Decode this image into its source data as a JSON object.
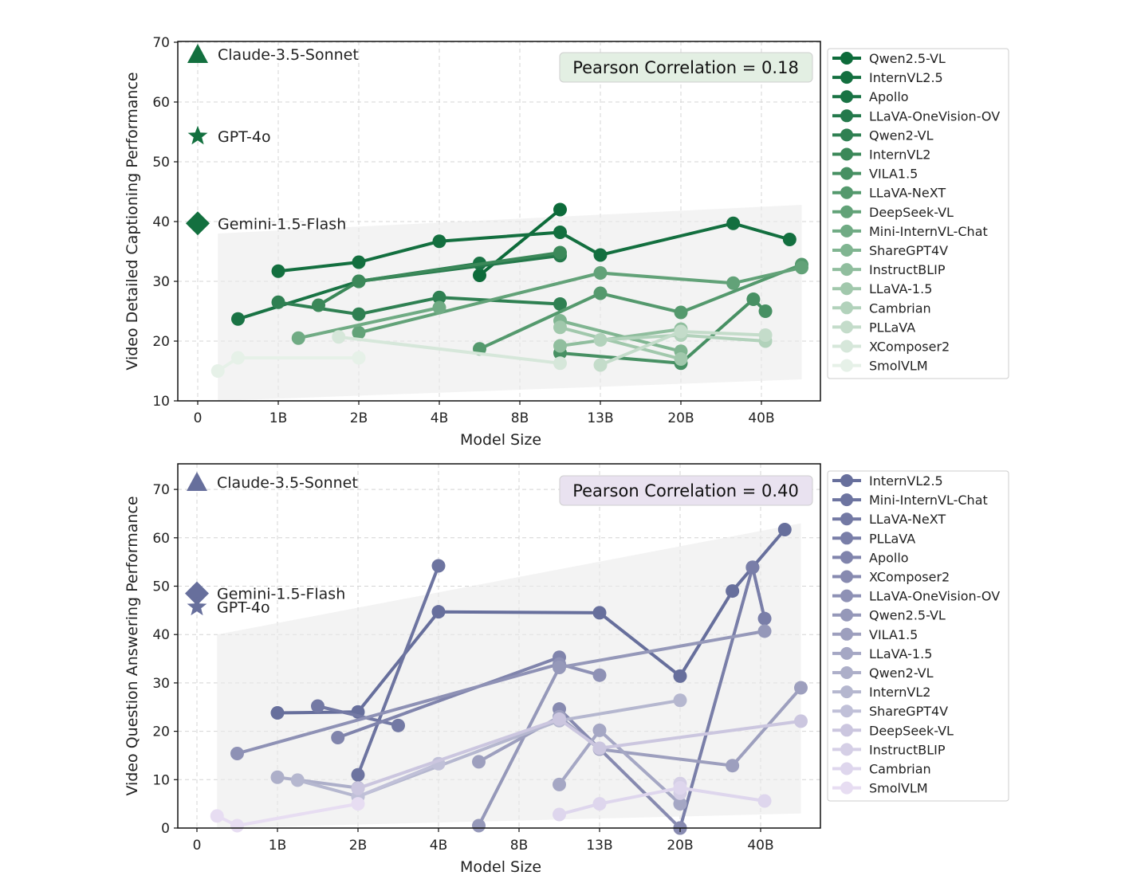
{
  "chart_data": [
    {
      "type": "line",
      "xlabel": "Model Size",
      "ylabel": "Video Detailed Captioning Performance",
      "x_ticks": [
        "0",
        "1B",
        "2B",
        "4B",
        "8B",
        "13B",
        "20B",
        "40B"
      ],
      "y_ticks": [
        10,
        20,
        30,
        40,
        50,
        60,
        70
      ],
      "ylim": [
        10,
        70
      ],
      "grid": true,
      "legend_position": "right-outside",
      "annotation": "Pearson Correlation = 0.18",
      "annotation_color": "#e3efe3",
      "closed_models": [
        {
          "name": "Claude-3.5-Sonnet",
          "marker": "triangle",
          "value": 68.0
        },
        {
          "name": "GPT-4o",
          "marker": "star",
          "value": 54.3
        },
        {
          "name": "Gemini-1.5-Flash",
          "marker": "diamond",
          "value": 39.7
        }
      ],
      "band": {
        "low": [
          [
            0.25,
            10.0
          ],
          [
            7.5,
            13.6
          ]
        ],
        "high": [
          [
            0.25,
            38.0
          ],
          [
            7.5,
            42.8
          ]
        ]
      },
      "series": [
        {
          "name": "Qwen2.5-VL",
          "color": "#0d6b3a",
          "points": [
            [
              3.5,
              31.0
            ],
            [
              4.5,
              42.0
            ]
          ]
        },
        {
          "name": "InternVL2.5",
          "color": "#136f3f",
          "points": [
            [
              1.0,
              31.7
            ],
            [
              2.0,
              33.2
            ],
            [
              3.0,
              36.7
            ],
            [
              4.5,
              38.2
            ],
            [
              5.0,
              34.4
            ],
            [
              6.65,
              39.7
            ],
            [
              7.35,
              37.0
            ]
          ]
        },
        {
          "name": "Apollo",
          "color": "#197344",
          "points": [
            [
              0.5,
              23.7
            ],
            [
              2.0,
              30.0
            ],
            [
              3.5,
              33.0
            ]
          ]
        },
        {
          "name": "LLaVA-OneVision-OV",
          "color": "#24794b",
          "points": [
            [
              2.0,
              30.0
            ],
            [
              4.5,
              34.3
            ]
          ]
        },
        {
          "name": "Qwen2-VL",
          "color": "#2f8052",
          "points": [
            [
              1.0,
              26.5
            ],
            [
              2.0,
              24.5
            ],
            [
              3.0,
              27.3
            ],
            [
              4.5,
              26.2
            ]
          ]
        },
        {
          "name": "InternVL2",
          "color": "#3b8859",
          "points": [
            [
              1.5,
              26.0
            ],
            [
              2.0,
              30.0
            ],
            [
              4.5,
              34.8
            ]
          ]
        },
        {
          "name": "VILA1.5",
          "color": "#479063",
          "points": [
            [
              4.5,
              18.0
            ],
            [
              6.0,
              16.3
            ],
            [
              6.9,
              27.0
            ],
            [
              7.05,
              25.0
            ]
          ]
        },
        {
          "name": "LLaVA-NeXT",
          "color": "#54996d",
          "points": [
            [
              3.5,
              18.7
            ],
            [
              5.0,
              28.0
            ],
            [
              6.0,
              24.8
            ],
            [
              7.5,
              32.8
            ]
          ]
        },
        {
          "name": "DeepSeek-VL",
          "color": "#62a278",
          "points": [
            [
              2.0,
              21.4
            ],
            [
              5.0,
              31.4
            ],
            [
              6.65,
              29.7
            ],
            [
              7.5,
              32.3
            ]
          ]
        },
        {
          "name": "Mini-InternVL-Chat",
          "color": "#70ab84",
          "points": [
            [
              1.25,
              20.5
            ],
            [
              3.0,
              25.6
            ]
          ]
        },
        {
          "name": "ShareGPT4V",
          "color": "#80b591",
          "points": [
            [
              4.5,
              23.4
            ],
            [
              6.0,
              18.3
            ]
          ]
        },
        {
          "name": "InstructBLIP",
          "color": "#90be9e",
          "points": [
            [
              4.5,
              19.2
            ],
            [
              6.0,
              22.0
            ]
          ]
        },
        {
          "name": "LLaVA-1.5",
          "color": "#a1c8ac",
          "points": [
            [
              4.5,
              22.3
            ],
            [
              6.0,
              17.0
            ]
          ]
        },
        {
          "name": "Cambrian",
          "color": "#b2d2bb",
          "points": [
            [
              5.0,
              20.2
            ],
            [
              6.0,
              21.0
            ],
            [
              7.05,
              20.0
            ]
          ]
        },
        {
          "name": "PLLaVA",
          "color": "#c4dcca",
          "points": [
            [
              5.0,
              16.0
            ],
            [
              6.0,
              21.6
            ],
            [
              7.05,
              21.0
            ]
          ]
        },
        {
          "name": "XComposer2",
          "color": "#d6e7da",
          "points": [
            [
              1.75,
              20.7
            ],
            [
              4.5,
              16.3
            ]
          ]
        },
        {
          "name": "SmolVLM",
          "color": "#e6f1e8",
          "points": [
            [
              0.25,
              15.0
            ],
            [
              0.5,
              17.2
            ],
            [
              2.0,
              17.2
            ]
          ]
        }
      ]
    },
    {
      "type": "line",
      "xlabel": "Model Size",
      "ylabel": "Video Question Answering Performance",
      "x_ticks": [
        "0",
        "1B",
        "2B",
        "4B",
        "8B",
        "13B",
        "20B",
        "40B"
      ],
      "y_ticks": [
        0,
        10,
        20,
        30,
        40,
        50,
        60,
        70
      ],
      "ylim": [
        0,
        74
      ],
      "grid": true,
      "legend_position": "right-outside",
      "annotation": "Pearson Correlation = 0.40",
      "annotation_color": "#e9e2f0",
      "closed_models": [
        {
          "name": "Claude-3.5-Sonnet",
          "marker": "triangle",
          "value": 71.5
        },
        {
          "name": "Gemini-1.5-Flash",
          "marker": "diamond",
          "value": 48.5
        },
        {
          "name": "GPT-4o",
          "marker": "star",
          "value": 45.7
        }
      ],
      "band": {
        "low": [
          [
            0.25,
            0.0
          ],
          [
            7.5,
            3.0
          ]
        ],
        "high": [
          [
            0.25,
            40.0
          ],
          [
            7.5,
            63.0
          ]
        ]
      },
      "series": [
        {
          "name": "InternVL2.5",
          "color": "#676f9c",
          "points": [
            [
              1.0,
              23.8
            ],
            [
              2.0,
              24.0
            ],
            [
              3.0,
              44.7
            ],
            [
              5.0,
              44.5
            ],
            [
              6.0,
              31.4
            ],
            [
              6.65,
              49.0
            ],
            [
              6.9,
              53.9
            ],
            [
              7.3,
              61.7
            ]
          ]
        },
        {
          "name": "Mini-InternVL-Chat",
          "color": "#6d74a0",
          "points": [
            [
              2.0,
              11.0
            ],
            [
              3.0,
              54.2
            ]
          ]
        },
        {
          "name": "LLaVA-NeXT",
          "color": "#7379a4",
          "points": [
            [
              1.5,
              25.2
            ],
            [
              2.5,
              21.2
            ]
          ]
        },
        {
          "name": "PLLaVA",
          "color": "#797ea8",
          "points": [
            [
              6.0,
              0.0
            ],
            [
              6.9,
              53.9
            ],
            [
              7.05,
              43.3
            ]
          ]
        },
        {
          "name": "Apollo",
          "color": "#8084ac",
          "points": [
            [
              1.75,
              18.7
            ],
            [
              4.5,
              35.3
            ]
          ]
        },
        {
          "name": "XComposer2",
          "color": "#878ab0",
          "points": [
            [
              4.5,
              24.6
            ],
            [
              6.0,
              0.0
            ]
          ]
        },
        {
          "name": "LLaVA-OneVision-OV",
          "color": "#8e91b5",
          "points": [
            [
              0.5,
              15.4
            ],
            [
              4.5,
              33.9
            ],
            [
              5.0,
              31.6
            ]
          ]
        },
        {
          "name": "Qwen2.5-VL",
          "color": "#9598b9",
          "points": [
            [
              3.5,
              0.5
            ],
            [
              4.5,
              33.2
            ],
            [
              7.05,
              40.7
            ]
          ]
        },
        {
          "name": "VILA1.5",
          "color": "#9d9fbe",
          "points": [
            [
              3.5,
              13.7
            ],
            [
              4.5,
              23.0
            ],
            [
              5.0,
              16.3
            ],
            [
              6.65,
              12.9
            ],
            [
              7.5,
              29.0
            ]
          ]
        },
        {
          "name": "LLaVA-1.5",
          "color": "#a5a7c4",
          "points": [
            [
              4.5,
              9.0
            ],
            [
              5.0,
              20.2
            ],
            [
              6.0,
              5.0
            ]
          ]
        },
        {
          "name": "Qwen2-VL",
          "color": "#adafc9",
          "points": [
            [
              1.0,
              10.5
            ],
            [
              2.0,
              8.3
            ]
          ]
        },
        {
          "name": "InternVL2",
          "color": "#b5b7cf",
          "points": [
            [
              1.25,
              9.9
            ],
            [
              2.0,
              6.5
            ],
            [
              4.5,
              22.2
            ],
            [
              6.0,
              26.4
            ]
          ]
        },
        {
          "name": "ShareGPT4V",
          "color": "#c0c0d8",
          "points": [
            [
              2.0,
              6.5
            ],
            [
              3.0,
              13.3
            ]
          ]
        },
        {
          "name": "DeepSeek-VL",
          "color": "#cbc6df",
          "points": [
            [
              2.0,
              8.2
            ],
            [
              4.5,
              22.5
            ],
            [
              5.0,
              16.5
            ],
            [
              7.5,
              22.1
            ]
          ]
        },
        {
          "name": "InstructBLIP",
          "color": "#d5cfe6",
          "points": [
            [
              6.0,
              7.2
            ],
            [
              6.0,
              9.2
            ]
          ]
        },
        {
          "name": "Cambrian",
          "color": "#ded6ed",
          "points": [
            [
              4.5,
              2.8
            ],
            [
              5.0,
              5.0
            ],
            [
              6.0,
              8.3
            ],
            [
              7.05,
              5.6
            ]
          ]
        },
        {
          "name": "SmolVLM",
          "color": "#e7ddf2",
          "points": [
            [
              0.25,
              2.5
            ],
            [
              0.5,
              0.5
            ],
            [
              2.0,
              5.0
            ]
          ]
        }
      ]
    }
  ]
}
